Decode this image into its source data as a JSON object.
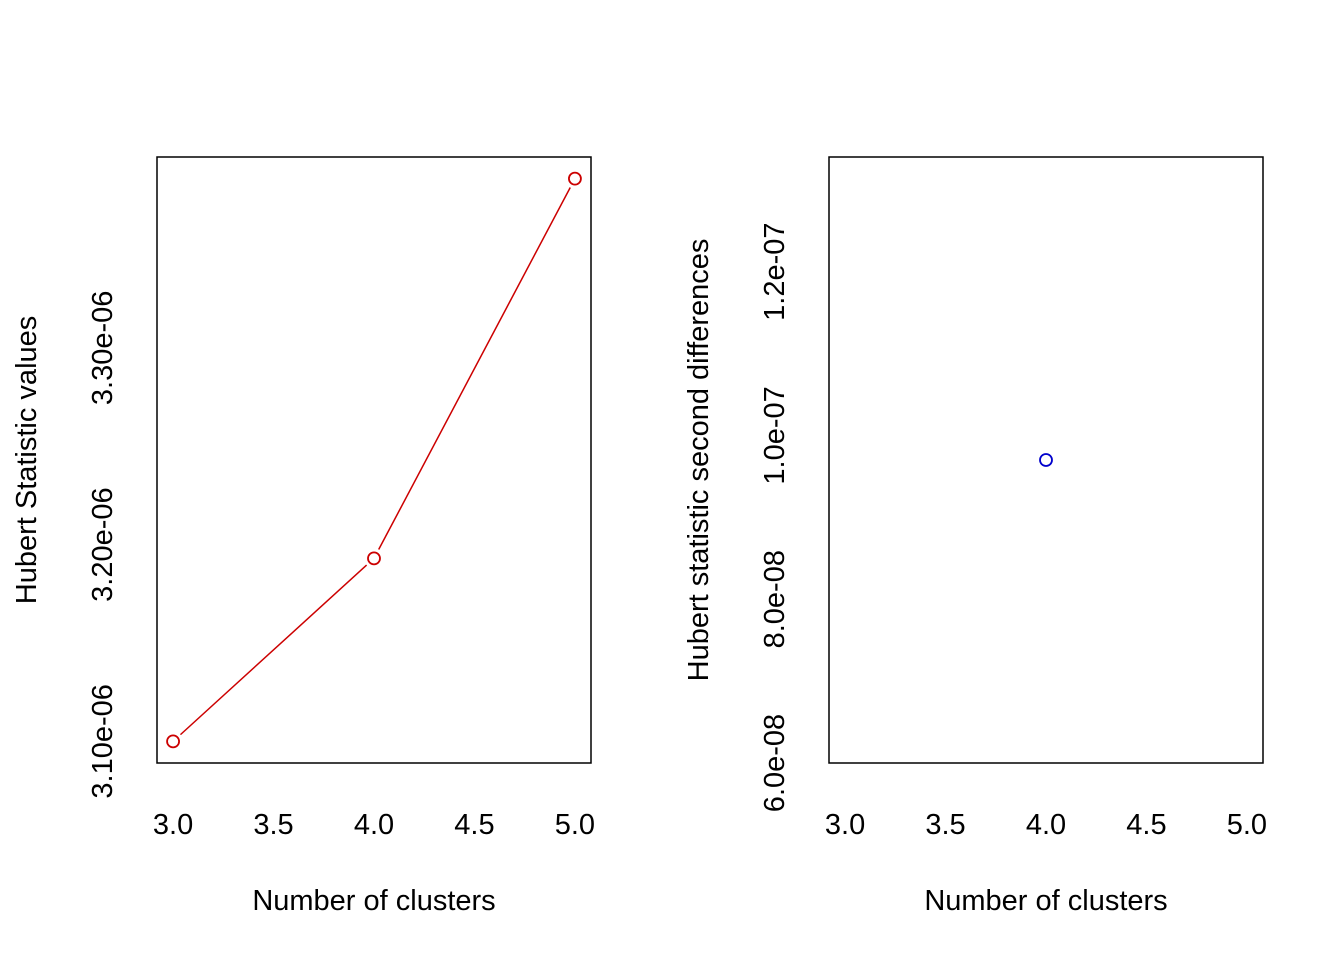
{
  "chart_data": [
    {
      "type": "line",
      "title": "",
      "xlabel": "Number of clusters",
      "ylabel": "Hubert Statistic values",
      "x": [
        3,
        4,
        5
      ],
      "xlim": [
        2.92,
        5.08
      ],
      "ylim": [
        3.089e-06,
        3.397e-06
      ],
      "xticks": [
        {
          "value": 3.0,
          "label": "3.0"
        },
        {
          "value": 3.5,
          "label": "3.5"
        },
        {
          "value": 4.0,
          "label": "4.0"
        },
        {
          "value": 4.5,
          "label": "4.5"
        },
        {
          "value": 5.0,
          "label": "5.0"
        }
      ],
      "yticks": [
        {
          "value": 3.1e-06,
          "label": "3.10e-06"
        },
        {
          "value": 3.2e-06,
          "label": "3.20e-06"
        },
        {
          "value": 3.3e-06,
          "label": "3.30e-06"
        }
      ],
      "series": [
        {
          "values": [
            3.1e-06,
            3.193e-06,
            3.386e-06
          ],
          "color": "#cc0000",
          "marker": "open-circle",
          "line": true
        }
      ],
      "grid": false
    },
    {
      "type": "scatter",
      "title": "",
      "xlabel": "Number of clusters",
      "ylabel": "Hubert statistic second differences",
      "x": [
        4
      ],
      "xlim": [
        2.92,
        5.08
      ],
      "ylim": [
        6e-08,
        1.34e-07
      ],
      "xticks": [
        {
          "value": 3.0,
          "label": "3.0"
        },
        {
          "value": 3.5,
          "label": "3.5"
        },
        {
          "value": 4.0,
          "label": "4.0"
        },
        {
          "value": 4.5,
          "label": "4.5"
        },
        {
          "value": 5.0,
          "label": "5.0"
        }
      ],
      "yticks": [
        {
          "value": 6e-08,
          "label": "6.0e-08"
        },
        {
          "value": 8e-08,
          "label": "8.0e-08"
        },
        {
          "value": 1e-07,
          "label": "1.0e-07"
        },
        {
          "value": 1.2e-07,
          "label": "1.2e-07"
        }
      ],
      "series": [
        {
          "values": [
            9.7e-08
          ],
          "color": "#0000cc",
          "marker": "open-circle",
          "line": false
        }
      ],
      "grid": false
    }
  ]
}
